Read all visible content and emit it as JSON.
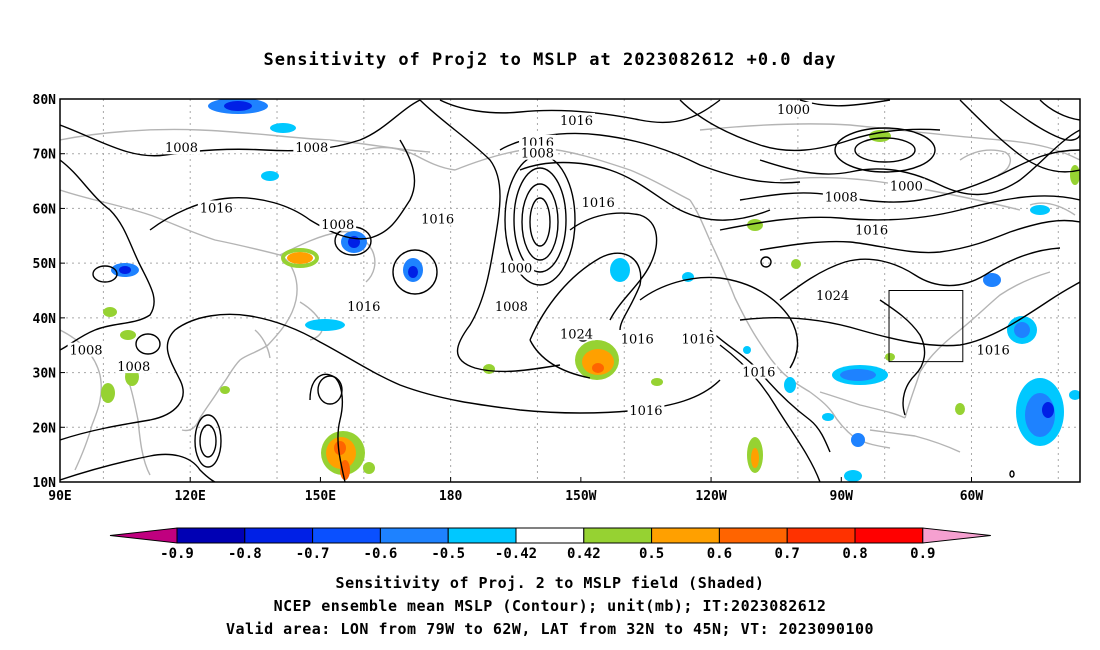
{
  "title": "Sensitivity of Proj2 to MSLP at 2023082612 +0.0 day",
  "map": {
    "lat_labels": [
      "80N",
      "70N",
      "60N",
      "50N",
      "40N",
      "30N",
      "20N",
      "10N"
    ],
    "lon_labels": [
      "90E",
      "120E",
      "150E",
      "180",
      "150W",
      "120W",
      "90W",
      "60W"
    ],
    "lon_range": [
      90,
      325
    ],
    "lat_range": [
      10,
      80
    ],
    "grid": true,
    "contour_unit": "mb",
    "contour_labels": [
      {
        "text": "1016",
        "lon": 209,
        "lat": 76
      },
      {
        "text": "1000",
        "lon": 259,
        "lat": 78
      },
      {
        "text": "1008",
        "lon": 118,
        "lat": 71
      },
      {
        "text": "1008",
        "lon": 148,
        "lat": 71
      },
      {
        "text": "1016",
        "lon": 200,
        "lat": 72
      },
      {
        "text": "1008",
        "lon": 200,
        "lat": 70
      },
      {
        "text": "1016",
        "lon": 126,
        "lat": 60
      },
      {
        "text": "1008",
        "lon": 154,
        "lat": 57
      },
      {
        "text": "1016",
        "lon": 177,
        "lat": 58
      },
      {
        "text": "1016",
        "lon": 214,
        "lat": 61
      },
      {
        "text": "1008",
        "lon": 270,
        "lat": 62
      },
      {
        "text": "1000",
        "lon": 285,
        "lat": 64
      },
      {
        "text": "1016",
        "lon": 277,
        "lat": 56
      },
      {
        "text": "1000",
        "lon": 195,
        "lat": 49
      },
      {
        "text": "1024",
        "lon": 268,
        "lat": 44
      },
      {
        "text": "1016",
        "lon": 160,
        "lat": 42
      },
      {
        "text": "1008",
        "lon": 194,
        "lat": 42
      },
      {
        "text": "1024",
        "lon": 209,
        "lat": 37
      },
      {
        "text": "1016",
        "lon": 223,
        "lat": 36
      },
      {
        "text": "1016",
        "lon": 237,
        "lat": 36
      },
      {
        "text": "1008",
        "lon": 96,
        "lat": 34
      },
      {
        "text": "1008",
        "lon": 107,
        "lat": 31
      },
      {
        "text": "1016",
        "lon": 251,
        "lat": 30
      },
      {
        "text": "1016",
        "lon": 305,
        "lat": 34
      },
      {
        "text": "1016",
        "lon": 225,
        "lat": 23
      }
    ],
    "valid_box": {
      "lon": [
        281,
        298
      ],
      "lat": [
        32,
        45
      ]
    }
  },
  "colorbar": {
    "labels": [
      "-0.9",
      "-0.8",
      "-0.7",
      "-0.6",
      "-0.5",
      "-0.42",
      "0.42",
      "0.5",
      "0.6",
      "0.7",
      "0.8",
      "0.9"
    ],
    "colors": [
      "#c0007f",
      "#0000b4",
      "#0020e6",
      "#0a50ff",
      "#1e82ff",
      "#00c8ff",
      "#ffffff",
      "#96d232",
      "#ffa000",
      "#ff6400",
      "#ff3200",
      "#ff0000",
      "#f5a0d0"
    ]
  },
  "footer": {
    "line1": "Sensitivity of Proj. 2 to MSLP field (Shaded)",
    "line2": "NCEP ensemble mean MSLP (Contour); unit(mb); IT:2023082612",
    "line3": "Valid area: LON from 79W to 62W, LAT from 32N to 45N; VT: 2023090100"
  }
}
